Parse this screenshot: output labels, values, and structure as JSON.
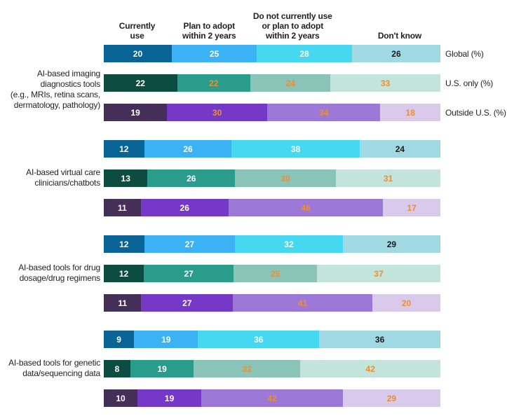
{
  "chart_data": {
    "type": "bar",
    "variant": "horizontal-stacked",
    "unit": "percent",
    "axis_range": [
      0,
      100
    ],
    "grid": false,
    "legend_position": "top-column-headers",
    "categories": [
      "Currently use",
      "Plan to adopt within 2 years",
      "Do not currently use or plan to adopt within 2 years",
      "Don't know"
    ],
    "column_header_lines": [
      [
        "Currently",
        "use"
      ],
      [
        "Plan to adopt",
        "within 2 years"
      ],
      [
        "Do not currently use",
        "or plan to adopt",
        "within 2 years"
      ],
      [
        "Don't know"
      ]
    ],
    "row_labels": [
      "Global (%)",
      "U.S. only (%)",
      "Outside U.S. (%)"
    ],
    "groups": [
      {
        "label": "AI-based imaging diagnostics tools (e.g., MRIs, retina scans, dermatology, pathology)",
        "label_lines": [
          "AI-based imaging",
          "diagnostics tools",
          "(e.g., MRIs, retina scans,",
          "dermatology, pathology)"
        ],
        "show_row_labels": true,
        "rows": [
          {
            "label": "Global (%)",
            "series": "global",
            "values": [
              20,
              25,
              28,
              26
            ],
            "value_colors": [
              "white",
              "white",
              "white",
              "dark"
            ]
          },
          {
            "label": "U.S. only (%)",
            "series": "us",
            "values": [
              22,
              22,
              24,
              33
            ],
            "value_colors": [
              "white",
              "orange",
              "orange",
              "orange"
            ]
          },
          {
            "label": "Outside U.S. (%)",
            "series": "outside",
            "values": [
              19,
              30,
              34,
              18
            ],
            "value_colors": [
              "white",
              "orange",
              "orange",
              "orange"
            ]
          }
        ]
      },
      {
        "label": "AI-based virtual care clinicians/chatbots",
        "label_lines": [
          "AI-based virtual care",
          "clinicians/chatbots"
        ],
        "show_row_labels": false,
        "rows": [
          {
            "label": "Global (%)",
            "series": "global",
            "values": [
              12,
              26,
              38,
              24
            ],
            "value_colors": [
              "white",
              "white",
              "white",
              "dark"
            ]
          },
          {
            "label": "U.S. only (%)",
            "series": "us",
            "values": [
              13,
              26,
              30,
              31
            ],
            "value_colors": [
              "white",
              "white",
              "orange",
              "orange"
            ]
          },
          {
            "label": "Outside U.S. (%)",
            "series": "outside",
            "values": [
              11,
              26,
              46,
              17
            ],
            "value_colors": [
              "white",
              "white",
              "orange",
              "orange"
            ]
          }
        ]
      },
      {
        "label": "AI-based tools for drug dosage/drug regimens",
        "label_lines": [
          "AI-based tools for drug",
          "dosage/drug regimens"
        ],
        "show_row_labels": false,
        "rows": [
          {
            "label": "Global (%)",
            "series": "global",
            "values": [
              12,
              27,
              32,
              29
            ],
            "value_colors": [
              "white",
              "white",
              "white",
              "dark"
            ]
          },
          {
            "label": "U.S. only (%)",
            "series": "us",
            "values": [
              12,
              27,
              25,
              37
            ],
            "value_colors": [
              "white",
              "white",
              "orange",
              "orange"
            ]
          },
          {
            "label": "Outside U.S. (%)",
            "series": "outside",
            "values": [
              11,
              27,
              41,
              20
            ],
            "value_colors": [
              "white",
              "white",
              "orange",
              "orange"
            ]
          }
        ]
      },
      {
        "label": "AI-based tools for genetic data/sequencing data",
        "label_lines": [
          "AI-based tools for genetic",
          "data/sequencing data"
        ],
        "show_row_labels": false,
        "rows": [
          {
            "label": "Global (%)",
            "series": "global",
            "values": [
              9,
              19,
              36,
              36
            ],
            "value_colors": [
              "white",
              "white",
              "white",
              "dark"
            ]
          },
          {
            "label": "U.S. only (%)",
            "series": "us",
            "values": [
              8,
              19,
              32,
              42
            ],
            "value_colors": [
              "white",
              "white",
              "orange",
              "orange"
            ]
          },
          {
            "label": "Outside U.S. (%)",
            "series": "outside",
            "values": [
              10,
              19,
              42,
              29
            ],
            "value_colors": [
              "white",
              "white",
              "orange",
              "orange"
            ]
          }
        ]
      }
    ],
    "colors": {
      "series_palettes": {
        "global": [
          "#0a6496",
          "#3bb1f6",
          "#46d8f1",
          "#a0d8e4"
        ],
        "us": [
          "#0d4c41",
          "#2a9c8c",
          "#8ac4b8",
          "#c2e4db"
        ],
        "outside": [
          "#452e58",
          "#7639c7",
          "#9c79d6",
          "#d9c9ea"
        ]
      },
      "value_text": {
        "white": "#ffffff",
        "dark": "#1a1a1a",
        "orange": "#ef8e2f"
      }
    }
  }
}
